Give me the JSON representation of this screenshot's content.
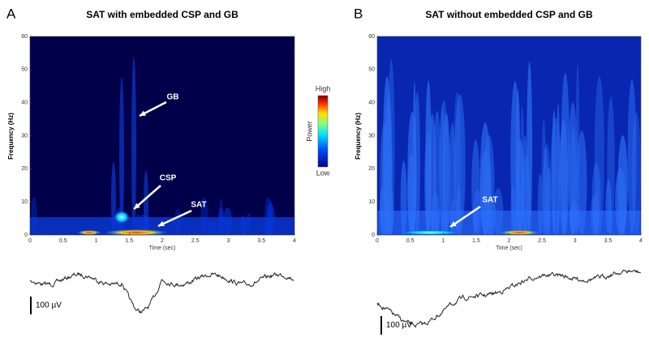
{
  "panels": [
    {
      "letter": "A",
      "title": "SAT with embedded CSP and GB",
      "y_label": "Frequency (Hz)",
      "x_label": "Time (sec)",
      "y_ticks": [
        0,
        10,
        20,
        30,
        40,
        50,
        60
      ],
      "x_ticks": [
        0,
        0.5,
        1,
        1.5,
        2,
        2.5,
        3,
        3.5,
        4
      ],
      "annotations": [
        "GB",
        "CSP",
        "SAT"
      ],
      "scale_bar": "100 µV"
    },
    {
      "letter": "B",
      "title": "SAT without embedded CSP and GB",
      "y_label": "Frequency (Hz)",
      "x_label": "Time (sec)",
      "y_ticks": [
        0,
        10,
        20,
        30,
        40,
        50,
        60
      ],
      "x_ticks": [
        0,
        0.5,
        1,
        1.5,
        2,
        2.5,
        3,
        3.5,
        4
      ],
      "annotations": [
        "SAT"
      ],
      "scale_bar": "100 µV"
    }
  ],
  "colorbar": {
    "high": "High",
    "low": "Low",
    "label": "Power"
  }
}
